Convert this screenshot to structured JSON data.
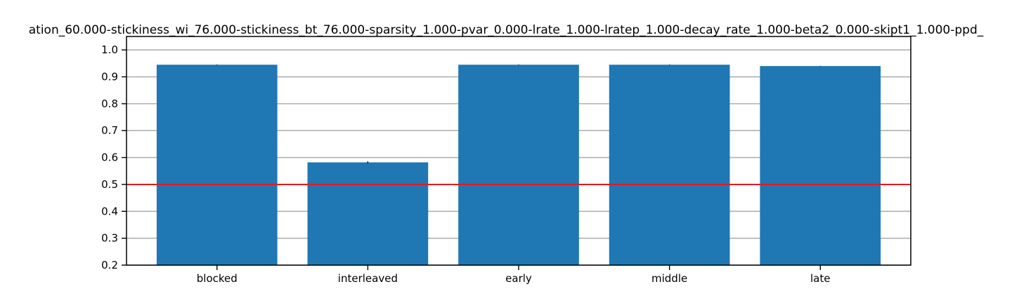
{
  "chart_data": {
    "type": "bar",
    "title": "ation_60.000-stickiness_wi_76.000-stickiness_bt_76.000-sparsity_1.000-pvar_0.000-lrate_1.000-lratep_1.000-decay_rate_1.000-beta2_0.000-skipt1_1.000-ppd_",
    "xlabel": "",
    "ylabel": "",
    "categories": [
      "blocked",
      "interleaved",
      "early",
      "middle",
      "late"
    ],
    "values": [
      0.945,
      0.582,
      0.945,
      0.945,
      0.94
    ],
    "error": [
      0.001,
      0.004,
      0.001,
      0.001,
      0.001
    ],
    "ylim": [
      0.2,
      1.05
    ],
    "yticks": [
      "0.2",
      "0.3",
      "0.4",
      "0.5",
      "0.6",
      "0.7",
      "0.8",
      "0.9",
      "1.0"
    ],
    "grid": "horizontal",
    "reference_line": {
      "y": 0.5,
      "color": "#e41a1c"
    },
    "bar_color": "#1f77b4"
  }
}
